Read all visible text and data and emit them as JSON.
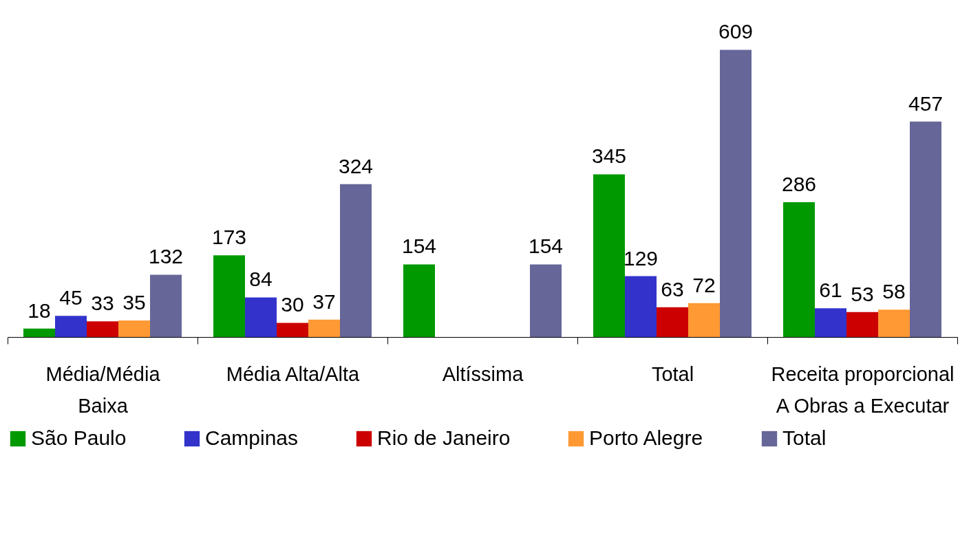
{
  "chart_data": {
    "type": "bar",
    "categories": [
      "Média/Média\nBaixa",
      "Média Alta/Alta",
      "Altíssima",
      "Total",
      "Receita proporcional\nA Obras a Executar"
    ],
    "series": [
      {
        "name": "São Paulo",
        "color": "#009900",
        "values": [
          18,
          173,
          154,
          345,
          286
        ]
      },
      {
        "name": "Campinas",
        "color": "#3333cc",
        "values": [
          45,
          84,
          null,
          129,
          61
        ]
      },
      {
        "name": "Rio de Janeiro",
        "color": "#cc0000",
        "values": [
          33,
          30,
          null,
          63,
          53
        ]
      },
      {
        "name": "Porto Alegre",
        "color": "#ff9933",
        "values": [
          35,
          37,
          null,
          72,
          58
        ]
      },
      {
        "name": "Total",
        "color": "#666699",
        "values": [
          132,
          324,
          154,
          609,
          457
        ]
      }
    ],
    "data_labels": true,
    "legend": "bottom",
    "grid": false
  }
}
